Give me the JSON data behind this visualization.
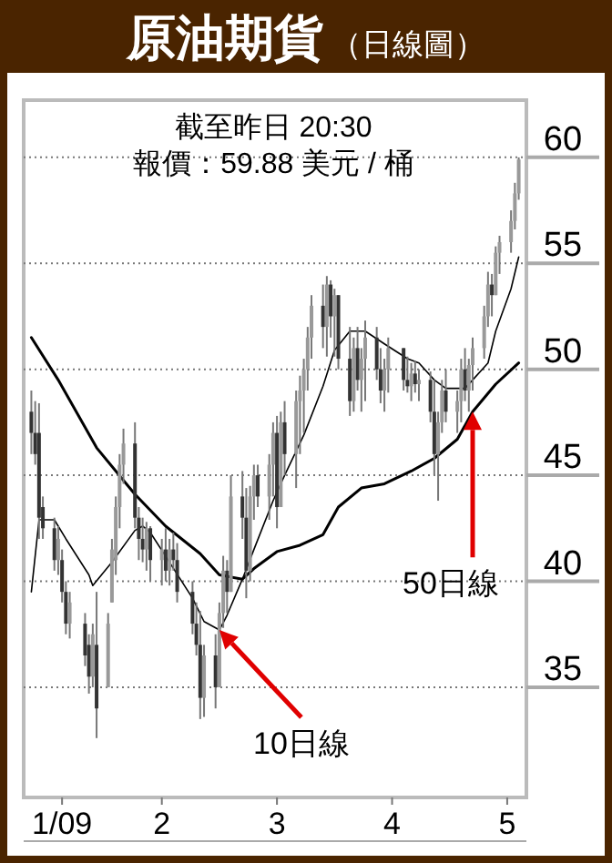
{
  "chart_data": {
    "type": "candlestick",
    "title": "原油期貨",
    "subtitle": "（日線圖）",
    "x": [
      "2009-01-06",
      "2009-01-07",
      "2009-01-08",
      "2009-01-09",
      "2009-01-12",
      "2009-01-13",
      "2009-01-14",
      "2009-01-15",
      "2009-01-16",
      "2009-01-20",
      "2009-01-21",
      "2009-01-22",
      "2009-01-23",
      "2009-01-26",
      "2009-01-27",
      "2009-01-28",
      "2009-01-29",
      "2009-01-30",
      "2009-02-02",
      "2009-02-03",
      "2009-02-04",
      "2009-02-05",
      "2009-02-06",
      "2009-02-09",
      "2009-02-10",
      "2009-02-11",
      "2009-02-12",
      "2009-02-13",
      "2009-02-17",
      "2009-02-18",
      "2009-02-19",
      "2009-02-20",
      "2009-02-23",
      "2009-02-24",
      "2009-02-25",
      "2009-02-26",
      "2009-02-27",
      "2009-03-02",
      "2009-03-03",
      "2009-03-04",
      "2009-03-05",
      "2009-03-06",
      "2009-03-09",
      "2009-03-10",
      "2009-03-11",
      "2009-03-12",
      "2009-03-13",
      "2009-03-16",
      "2009-03-17",
      "2009-03-18",
      "2009-03-19",
      "2009-03-20",
      "2009-03-23",
      "2009-03-24",
      "2009-03-25",
      "2009-03-26",
      "2009-03-27",
      "2009-03-30",
      "2009-03-31",
      "2009-04-01",
      "2009-04-02",
      "2009-04-03",
      "2009-04-06",
      "2009-04-07",
      "2009-04-08",
      "2009-04-09",
      "2009-04-13",
      "2009-04-14",
      "2009-04-15",
      "2009-04-16",
      "2009-04-17",
      "2009-04-20",
      "2009-04-21",
      "2009-04-22",
      "2009-04-23",
      "2009-04-24",
      "2009-04-27",
      "2009-04-28",
      "2009-04-29",
      "2009-04-30",
      "2009-05-01",
      "2009-05-04",
      "2009-05-05",
      "2009-05-06",
      "2009-05-07",
      "2009-05-08",
      "2009-05-11",
      "2009-05-12",
      "2009-05-13"
    ],
    "ohlc": [
      [
        48,
        49,
        46,
        47
      ],
      [
        47,
        48.5,
        45.5,
        46
      ],
      [
        47,
        48.4,
        42,
        43
      ],
      [
        43.5,
        44,
        42,
        42.5
      ],
      [
        42.5,
        43,
        40.5,
        41
      ],
      [
        41,
        42.6,
        40.3,
        42
      ],
      [
        41,
        41.5,
        39,
        39.5
      ],
      [
        39.5,
        40,
        37.5,
        38
      ],
      [
        38,
        39.5,
        37.3,
        39
      ],
      [
        38,
        38.5,
        36,
        36.5
      ],
      [
        37,
        37.5,
        34.7,
        35.5
      ],
      [
        35.5,
        38,
        35,
        37.5
      ],
      [
        37,
        39.5,
        32.6,
        34
      ],
      [
        35,
        38.5,
        35,
        38
      ],
      [
        39,
        42,
        39,
        41.5
      ],
      [
        41,
        44,
        40.3,
        43.5
      ],
      [
        43.5,
        46,
        42.5,
        45.5
      ],
      [
        45.5,
        47.2,
        44.6,
        46.5
      ],
      [
        46.5,
        47.5,
        42.5,
        43
      ],
      [
        43,
        43.5,
        41,
        42
      ],
      [
        42,
        43,
        40.9,
        41.5
      ],
      [
        41.5,
        42.8,
        40.5,
        42.5
      ],
      [
        42.5,
        42.6,
        40,
        41
      ],
      [
        41,
        42,
        39.8,
        41.5
      ],
      [
        41.5,
        42.5,
        40,
        40.5
      ],
      [
        40.5,
        42,
        39.8,
        41.5
      ],
      [
        41.5,
        42.3,
        40.5,
        41
      ],
      [
        41,
        41.8,
        39,
        39.5
      ],
      [
        39.5,
        40,
        37.5,
        38
      ],
      [
        38,
        39,
        36.5,
        37
      ],
      [
        37,
        38.6,
        33.5,
        34.5
      ],
      [
        34.5,
        37,
        33.6,
        36.5
      ],
      [
        36.5,
        37.5,
        34,
        35
      ],
      [
        35,
        39,
        35,
        38.5
      ],
      [
        38.5,
        41.2,
        37.8,
        40.5
      ],
      [
        40.5,
        41,
        38.5,
        39.5
      ],
      [
        39.5,
        45,
        39.5,
        44
      ],
      [
        44,
        45.2,
        42,
        43
      ],
      [
        43,
        44.4,
        39.2,
        40.5
      ],
      [
        40.5,
        44.5,
        40,
        44
      ],
      [
        44,
        45.5,
        42.9,
        45
      ],
      [
        45,
        45.5,
        43.5,
        44
      ],
      [
        44,
        46,
        42.9,
        45.5
      ],
      [
        45.5,
        47.5,
        44,
        47
      ],
      [
        47,
        47.8,
        42.5,
        43.5
      ],
      [
        43.5,
        48,
        43.5,
        47.5
      ],
      [
        47.5,
        48.5,
        45,
        46
      ],
      [
        46,
        49,
        44.4,
        48.5
      ],
      [
        48.5,
        49.7,
        46,
        49
      ],
      [
        49,
        50.5,
        47,
        50
      ],
      [
        50,
        52,
        49,
        51.5
      ],
      [
        51.5,
        53.5,
        50.5,
        53
      ],
      [
        53,
        54,
        51,
        52
      ],
      [
        52,
        54.4,
        50.6,
        54
      ],
      [
        54,
        54.2,
        51.5,
        52.5
      ],
      [
        52.5,
        53.8,
        50.6,
        53.5
      ],
      [
        53.5,
        53.5,
        50,
        50.5
      ],
      [
        50.5,
        52,
        47.8,
        48.5
      ],
      [
        48.5,
        51.5,
        48,
        51
      ],
      [
        51,
        52,
        49,
        49.5
      ],
      [
        49.5,
        51,
        48,
        50.5
      ],
      [
        50.5,
        52.3,
        48.5,
        51.5
      ],
      [
        51.5,
        52,
        49.5,
        50
      ],
      [
        50,
        51,
        48.4,
        49
      ],
      [
        49,
        50.5,
        48,
        50
      ],
      [
        50,
        51.5,
        48.9,
        51
      ],
      [
        51,
        51,
        49,
        49.5
      ],
      [
        49.5,
        50.6,
        48.9,
        49.2
      ],
      [
        49.2,
        50.3,
        48.5,
        49.8
      ],
      [
        49.8,
        50.4,
        48.9,
        49.3
      ],
      [
        49.3,
        50,
        48.5,
        49.5
      ],
      [
        49.5,
        49.9,
        47.5,
        48
      ],
      [
        48,
        49.5,
        45,
        46
      ],
      [
        46,
        48,
        43.8,
        47.5
      ],
      [
        47.5,
        49.5,
        47,
        49
      ],
      [
        49,
        50,
        47.5,
        48
      ],
      [
        48,
        49,
        47,
        48.5
      ],
      [
        48.5,
        50.5,
        47.5,
        50
      ],
      [
        50,
        51,
        48.5,
        49
      ],
      [
        49,
        50.5,
        48,
        50.2
      ],
      [
        50.2,
        51.5,
        49,
        51
      ],
      [
        51,
        53,
        50.5,
        52.5
      ],
      [
        52.5,
        54.6,
        52,
        54
      ],
      [
        54,
        54.5,
        52.5,
        53.5
      ],
      [
        53.5,
        55.8,
        53.5,
        55.5
      ],
      [
        55.5,
        56.3,
        54.5,
        56
      ],
      [
        56,
        57.5,
        55.5,
        57
      ],
      [
        57,
        58.8,
        56.6,
        58.3
      ],
      [
        58.3,
        60,
        58,
        59.9
      ]
    ],
    "series": [
      {
        "type": "line",
        "color": "#000000",
        "x": [
          "2009-01-06",
          "2009-01-08",
          "2009-01-12",
          "2009-01-15",
          "2009-01-21",
          "2009-01-22",
          "2009-01-27",
          "2009-02-02",
          "2009-02-04",
          "2009-02-06",
          "2009-02-11",
          "2009-02-17",
          "2009-02-20",
          "2009-02-24",
          "2009-02-26",
          "2009-03-02",
          "2009-03-05",
          "2009-03-10",
          "2009-03-13",
          "2009-03-18",
          "2009-03-23",
          "2009-03-26",
          "2009-03-30",
          "2009-04-03",
          "2009-04-08",
          "2009-04-14",
          "2009-04-17",
          "2009-04-21",
          "2009-04-24",
          "2009-04-29",
          "2009-05-01",
          "2009-05-05",
          "2009-05-07",
          "2009-05-11",
          "2009-05-13"
        ],
        "values": [
          39.5,
          42.9,
          42.9,
          42,
          40.3,
          39.8,
          40.9,
          42.4,
          42.6,
          42.3,
          40.9,
          39.2,
          38.1,
          37.7,
          38.4,
          40.1,
          41.5,
          43.8,
          45,
          46.9,
          49.2,
          50.9,
          51.8,
          51.8,
          51.2,
          50.5,
          50.3,
          49.5,
          49.1,
          49.1,
          49.5,
          50.3,
          51.8,
          53.8,
          55.3
        ]
      },
      {
        "type": "line",
        "color": "#000000",
        "x": [
          "2009-01-06",
          "2009-01-13",
          "2009-01-23",
          "2009-02-02",
          "2009-02-10",
          "2009-02-19",
          "2009-02-24",
          "2009-03-02",
          "2009-03-05",
          "2009-03-11",
          "2009-03-17",
          "2009-03-23",
          "2009-03-27",
          "2009-04-02",
          "2009-04-08",
          "2009-04-15",
          "2009-04-21",
          "2009-04-27",
          "2009-05-01",
          "2009-05-07",
          "2009-05-13"
        ],
        "values": [
          51.5,
          49.5,
          46.3,
          44.1,
          42.6,
          41.3,
          40.3,
          40.1,
          40.6,
          41.4,
          41.7,
          42.2,
          43.5,
          44.4,
          44.6,
          45.2,
          45.8,
          46.7,
          48,
          49.3,
          50.3
        ]
      }
    ],
    "xlim": [
      "2009-01-04",
      "2009-05-15"
    ],
    "xticks": [
      {
        "value": "2009-01-14",
        "label": "1/09"
      },
      {
        "value": "2009-02-09",
        "label": "2"
      },
      {
        "value": "2009-03-11",
        "label": "3"
      },
      {
        "value": "2009-04-10",
        "label": "4"
      },
      {
        "value": "2009-05-10",
        "label": "5"
      }
    ],
    "ylim": [
      29.8,
      62.7
    ],
    "yticks": [
      35,
      40,
      45,
      50,
      55,
      60
    ],
    "grid": "y",
    "annotations": [
      "截至昨日 20:30",
      "報價：59.88 美元 / 桶",
      "10日線",
      "50日線"
    ]
  }
}
